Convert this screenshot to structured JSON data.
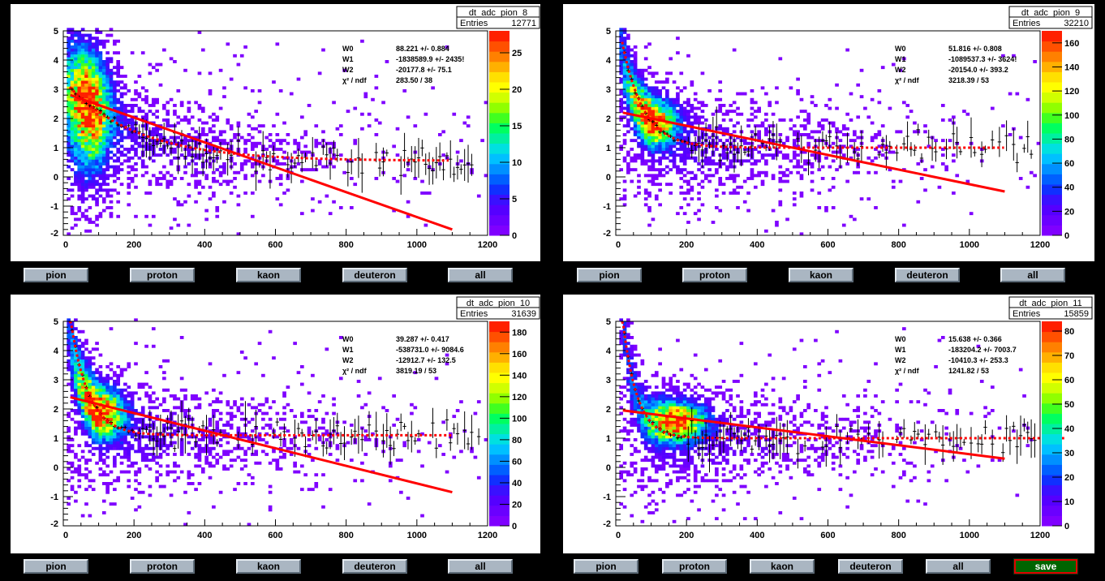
{
  "chart_data": [
    {
      "type": "heatmap",
      "title": "dt_adc_pion_8",
      "entries": "12771",
      "xlim": [
        0,
        1200
      ],
      "ylim": [
        -2,
        5
      ],
      "zmax": 28,
      "xticks": [
        "0",
        "200",
        "400",
        "600",
        "800",
        "1000",
        "1200"
      ],
      "yticks": [
        "-2",
        "-1",
        "0",
        "1",
        "2",
        "3",
        "4",
        "5"
      ],
      "zticks": [
        "0",
        "5",
        "10",
        "15",
        "20",
        "25"
      ],
      "ztick_values": [
        0,
        5,
        10,
        15,
        20,
        25
      ],
      "fit": [
        {
          "name": "W0",
          "value": "88.221 +/- 0.884"
        },
        {
          "name": "W1",
          "value": "-1838589.9 +/- 2435!"
        },
        {
          "name": "W2",
          "value": "-20177.8 +/- 75.1"
        },
        {
          "name": "χ² / ndf",
          "value": "283.50 / 38"
        }
      ],
      "linear_fit": {
        "x": [
          20,
          1100
        ],
        "y": [
          2.8,
          -1.8
        ]
      },
      "dotted_fit": {
        "asymptote": 0.55,
        "amplitude": 2.5,
        "decay": 200,
        "xmax": 1090
      },
      "blob": {
        "xc": 70,
        "sx": 40,
        "yc": 2.2,
        "sy": 1.2
      }
    },
    {
      "type": "heatmap",
      "title": "dt_adc_pion_9",
      "entries": "32210",
      "xlim": [
        0,
        1200
      ],
      "ylim": [
        -2,
        5
      ],
      "zmax": 170,
      "xticks": [
        "0",
        "200",
        "400",
        "600",
        "800",
        "1000",
        "1200"
      ],
      "yticks": [
        "-2",
        "-1",
        "0",
        "1",
        "2",
        "3",
        "4",
        "5"
      ],
      "zticks": [
        "0",
        "20",
        "40",
        "60",
        "80",
        "100",
        "120",
        "140",
        "160"
      ],
      "ztick_values": [
        0,
        20,
        40,
        60,
        80,
        100,
        120,
        140,
        160
      ],
      "fit": [
        {
          "name": "W0",
          "value": "51.816 +/- 0.808"
        },
        {
          "name": "W1",
          "value": "-1089537.3 +/- 3624!"
        },
        {
          "name": "W2",
          "value": "-20154.0 +/- 393.2"
        },
        {
          "name": "χ² / ndf",
          "value": "3218.39 / 53"
        }
      ],
      "linear_fit": {
        "x": [
          20,
          1100
        ],
        "y": [
          2.2,
          -0.5
        ]
      },
      "dotted_fit": {
        "asymptote": 1.0,
        "amplitude": 3.5,
        "decay": 60,
        "xmax": 1100
      },
      "blob": {
        "xc": 100,
        "sx": 45,
        "yc": 1.9,
        "sy": 0.45
      }
    },
    {
      "type": "heatmap",
      "title": "dt_adc_pion_10",
      "entries": "31639",
      "xlim": [
        0,
        1200
      ],
      "ylim": [
        -2,
        5
      ],
      "zmax": 190,
      "xticks": [
        "0",
        "200",
        "400",
        "600",
        "800",
        "1000",
        "1200"
      ],
      "yticks": [
        "-2",
        "-1",
        "0",
        "1",
        "2",
        "3",
        "4",
        "5"
      ],
      "zticks": [
        "0",
        "20",
        "40",
        "60",
        "80",
        "100",
        "120",
        "140",
        "160",
        "180"
      ],
      "ztick_values": [
        0,
        20,
        40,
        60,
        80,
        100,
        120,
        140,
        160,
        180
      ],
      "fit": [
        {
          "name": "W0",
          "value": "39.287 +/- 0.417"
        },
        {
          "name": "W1",
          "value": "-538731.0 +/- 9084.6"
        },
        {
          "name": "W2",
          "value": "-12912.7 +/- 132.5"
        },
        {
          "name": "χ² / ndf",
          "value": "3819.19 / 53"
        }
      ],
      "linear_fit": {
        "x": [
          20,
          1100
        ],
        "y": [
          2.4,
          -0.85
        ]
      },
      "dotted_fit": {
        "asymptote": 1.1,
        "amplitude": 4.0,
        "decay": 50,
        "xmax": 1100
      },
      "blob": {
        "xc": 100,
        "sx": 45,
        "yc": 1.9,
        "sy": 0.5
      }
    },
    {
      "type": "heatmap",
      "title": "dt_adc_pion_11",
      "entries": "15859",
      "xlim": [
        0,
        1200
      ],
      "ylim": [
        -2,
        5
      ],
      "zmax": 84,
      "xticks": [
        "0",
        "200",
        "400",
        "600",
        "800",
        "1000",
        "1200"
      ],
      "yticks": [
        "-2",
        "-1",
        "0",
        "1",
        "2",
        "3",
        "4",
        "5"
      ],
      "zticks": [
        "0",
        "10",
        "20",
        "30",
        "40",
        "50",
        "60",
        "70",
        "80"
      ],
      "ztick_values": [
        0,
        10,
        20,
        30,
        40,
        50,
        60,
        70,
        80
      ],
      "fit": [
        {
          "name": "W0",
          "value": "15.638 +/- 0.366"
        },
        {
          "name": "W1",
          "value": "-183204.2 +/- 7003.7"
        },
        {
          "name": "W2",
          "value": "-10410.3 +/- 253.3"
        },
        {
          "name": "χ² / ndf",
          "value": "1241.82 / 53"
        }
      ],
      "linear_fit": {
        "x": [
          20,
          1100
        ],
        "y": [
          1.95,
          0.3
        ]
      },
      "dotted_fit": {
        "asymptote": 1.0,
        "amplitude": 4.0,
        "decay": 40,
        "xmax": 1270
      },
      "blob": {
        "xc": 170,
        "sx": 55,
        "yc": 1.6,
        "sy": 0.4
      }
    }
  ],
  "stats_entries_label": "Entries",
  "buttons": {
    "pion": "pion",
    "proton": "proton",
    "kaon": "kaon",
    "deuteron": "deuteron",
    "all": "all",
    "save": "save"
  }
}
